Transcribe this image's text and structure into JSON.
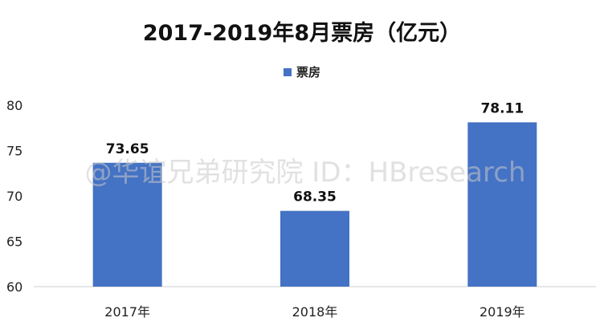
{
  "chart_data": {
    "type": "bar",
    "title": "2017-2019年8月票房（亿元）",
    "categories": [
      "2017年",
      "2018年",
      "2019年"
    ],
    "series": [
      {
        "name": "票房",
        "values": [
          73.65,
          68.35,
          78.11
        ],
        "color": "#4472C4"
      }
    ],
    "data_labels": [
      "73.65",
      "68.35",
      "78.11"
    ],
    "yticks": [
      "60",
      "65",
      "70",
      "75",
      "80"
    ],
    "ylim": [
      60,
      80
    ],
    "xlabel": "",
    "ylabel": "",
    "grid": false,
    "legend_position": "top-center"
  },
  "watermark": "@华谊兄弟研究院 ID：HBresearch"
}
